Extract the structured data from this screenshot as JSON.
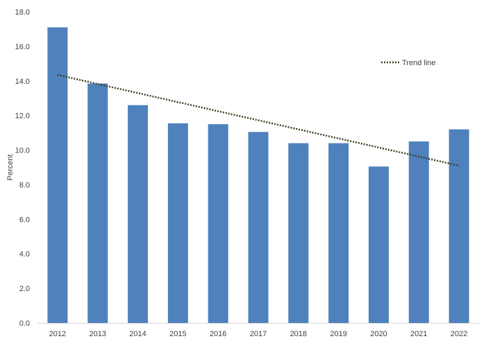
{
  "chart_data": {
    "type": "bar",
    "title": "",
    "xlabel": "",
    "ylabel": "Percent",
    "ylim": [
      0,
      18
    ],
    "yticks": [
      "0.0",
      "2.0",
      "4.0",
      "6.0",
      "8.0",
      "10.0",
      "12.0",
      "14.0",
      "16.0",
      "18.0"
    ],
    "categories": [
      "2012",
      "2013",
      "2014",
      "2015",
      "2016",
      "2017",
      "2018",
      "2019",
      "2020",
      "2021",
      "2022"
    ],
    "values": [
      17.1,
      13.85,
      12.6,
      11.55,
      11.5,
      11.05,
      10.4,
      10.4,
      9.05,
      10.5,
      11.2
    ],
    "bar_color": "#4f81bd",
    "trend_line": {
      "label": "Trend line",
      "start": 14.35,
      "end": 9.1,
      "color": "#3b3b1f",
      "style": "dotted"
    },
    "legend": {
      "position": "top-right"
    },
    "grid": false
  }
}
